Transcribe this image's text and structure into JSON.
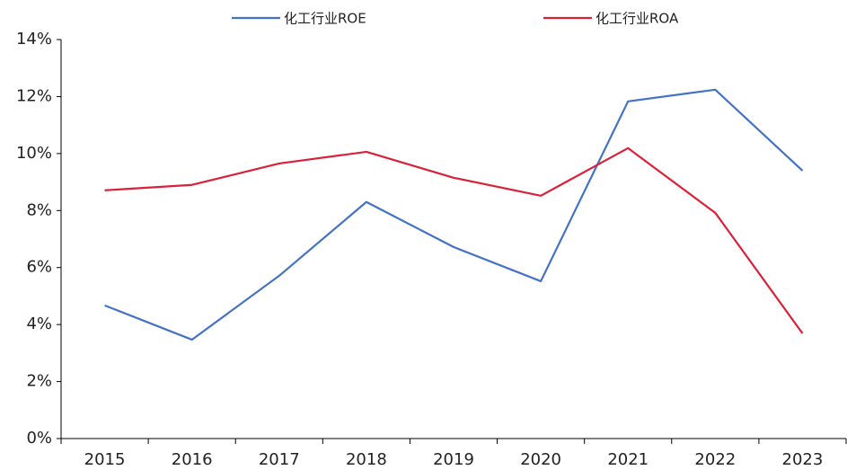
{
  "chart_data": {
    "type": "line",
    "categories": [
      "2015",
      "2016",
      "2017",
      "2018",
      "2019",
      "2020",
      "2021",
      "2022",
      "2023"
    ],
    "series": [
      {
        "name": "化工行业ROE",
        "color": "#4472c4",
        "values": [
          4.67,
          3.47,
          5.71,
          8.3,
          6.72,
          5.52,
          11.83,
          12.24,
          9.4
        ]
      },
      {
        "name": "化工行业ROA",
        "color": "#d9213a",
        "values": [
          8.71,
          8.9,
          9.65,
          10.06,
          9.15,
          8.52,
          10.19,
          7.92,
          3.69
        ]
      }
    ],
    "ylim": [
      0,
      14
    ],
    "yticks": [
      {
        "value": 0,
        "label": "0%"
      },
      {
        "value": 2,
        "label": "2%"
      },
      {
        "value": 4,
        "label": "4%"
      },
      {
        "value": 6,
        "label": "6%"
      },
      {
        "value": 8,
        "label": "8%"
      },
      {
        "value": 10,
        "label": "10%"
      },
      {
        "value": 12,
        "label": "12%"
      },
      {
        "value": 14,
        "label": "14%"
      }
    ],
    "grid": false,
    "legend": "top"
  }
}
